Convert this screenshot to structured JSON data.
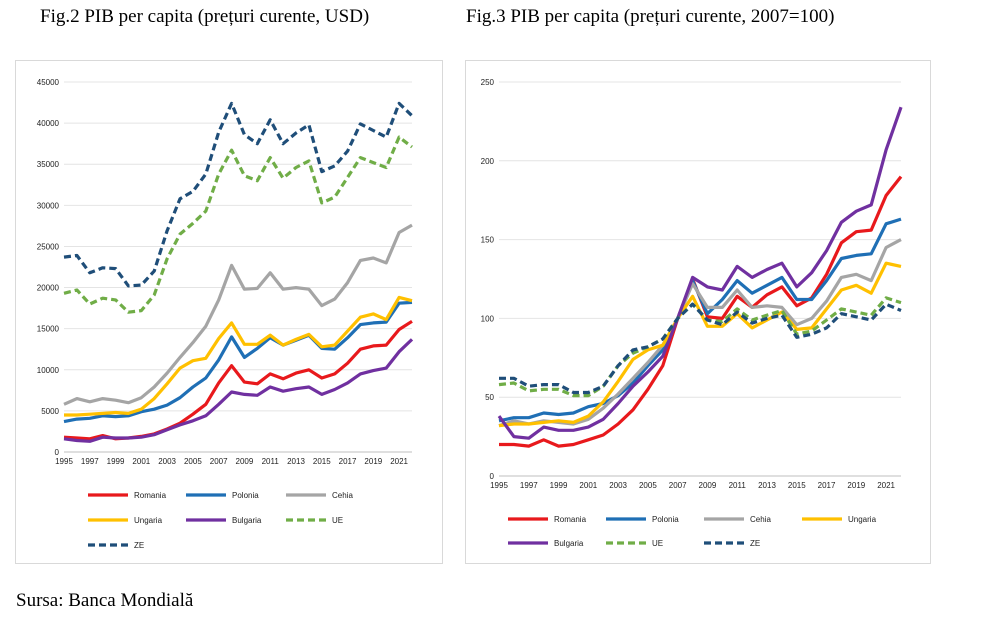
{
  "titles": {
    "fig2": "Fig.2 PIB per capita (prețuri curente, USD)",
    "fig3": "Fig.3 PIB per capita (prețuri curente, 2007=100)"
  },
  "source": "Sursa: Banca Mondială",
  "chart_data": [
    {
      "type": "line",
      "title": "Fig.2 PIB per capita (prețuri curente, USD)",
      "xlabel": "",
      "ylabel": "",
      "x": [
        1995,
        1996,
        1997,
        1998,
        1999,
        2000,
        2001,
        2002,
        2003,
        2004,
        2005,
        2006,
        2007,
        2008,
        2009,
        2010,
        2011,
        2012,
        2013,
        2014,
        2015,
        2016,
        2017,
        2018,
        2019,
        2020,
        2021,
        2022
      ],
      "x_tick_labels": [
        "1995",
        "1997",
        "1999",
        "2001",
        "2003",
        "2005",
        "2007",
        "2009",
        "2011",
        "2013",
        "2015",
        "2017",
        "2019",
        "2021"
      ],
      "ylim": [
        0,
        45000
      ],
      "y_ticks": [
        0,
        5000,
        10000,
        15000,
        20000,
        25000,
        30000,
        35000,
        40000,
        45000
      ],
      "grid": true,
      "legend_position": "bottom",
      "series": [
        {
          "name": "Romania",
          "color": "#e8191c",
          "dash": false,
          "values": [
            1800,
            1700,
            1600,
            2000,
            1600,
            1700,
            1900,
            2200,
            2800,
            3500,
            4600,
            5800,
            8400,
            10500,
            8500,
            8300,
            9500,
            8900,
            9600,
            10000,
            9000,
            9500,
            10800,
            12500,
            12900,
            13000,
            14900,
            15900
          ]
        },
        {
          "name": "Polonia",
          "color": "#1f6fb5",
          "dash": false,
          "values": [
            3700,
            4000,
            4100,
            4400,
            4300,
            4400,
            4900,
            5200,
            5700,
            6600,
            7900,
            9000,
            11200,
            14000,
            11500,
            12600,
            13900,
            13000,
            13600,
            14200,
            12600,
            12500,
            13900,
            15500,
            15700,
            15800,
            18100,
            18200
          ]
        },
        {
          "name": "Cehia",
          "color": "#a5a5a5",
          "dash": false,
          "values": [
            5800,
            6500,
            6100,
            6500,
            6300,
            6000,
            6600,
            7900,
            9600,
            11500,
            13300,
            15300,
            18500,
            22700,
            19800,
            19900,
            21800,
            19800,
            20000,
            19800,
            17800,
            18600,
            20600,
            23300,
            23600,
            23000,
            26700,
            27600
          ]
        },
        {
          "name": "Ungaria",
          "color": "#ffc000",
          "dash": false,
          "values": [
            4500,
            4500,
            4600,
            4700,
            4800,
            4700,
            5200,
            6500,
            8300,
            10200,
            11100,
            11400,
            13800,
            15700,
            13100,
            13100,
            14200,
            13000,
            13700,
            14300,
            12800,
            13000,
            14700,
            16400,
            16800,
            16100,
            18800,
            18400
          ]
        },
        {
          "name": "Bulgaria",
          "color": "#7030a0",
          "dash": false,
          "values": [
            1600,
            1400,
            1300,
            1800,
            1700,
            1700,
            1800,
            2100,
            2700,
            3300,
            3800,
            4400,
            5800,
            7300,
            7000,
            6900,
            7900,
            7400,
            7700,
            7900,
            7000,
            7600,
            8400,
            9500,
            9900,
            10200,
            12200,
            13700
          ]
        },
        {
          "name": "UE",
          "color": "#70ad47",
          "dash": true,
          "values": [
            19300,
            19700,
            18000,
            18700,
            18500,
            17000,
            17200,
            19100,
            23500,
            26500,
            27800,
            29300,
            33800,
            36700,
            33600,
            33000,
            35800,
            33300,
            34600,
            35400,
            30300,
            31000,
            33400,
            35800,
            35200,
            34600,
            38300,
            37100
          ]
        },
        {
          "name": "ZE",
          "color": "#1f4e79",
          "dash": true,
          "values": [
            23700,
            23900,
            21800,
            22400,
            22300,
            20200,
            20300,
            22000,
            26900,
            30800,
            31700,
            33800,
            38900,
            42400,
            38600,
            37500,
            40400,
            37500,
            38800,
            39800,
            34100,
            34800,
            36600,
            39900,
            39100,
            38300,
            42400,
            40900
          ]
        }
      ]
    },
    {
      "type": "line",
      "title": "Fig.3 PIB per capita (prețuri curente, 2007=100)",
      "xlabel": "",
      "ylabel": "",
      "x": [
        1995,
        1996,
        1997,
        1998,
        1999,
        2000,
        2001,
        2002,
        2003,
        2004,
        2005,
        2006,
        2007,
        2008,
        2009,
        2010,
        2011,
        2012,
        2013,
        2014,
        2015,
        2016,
        2017,
        2018,
        2019,
        2020,
        2021,
        2022
      ],
      "x_tick_labels": [
        "1995",
        "1997",
        "1999",
        "2001",
        "2003",
        "2005",
        "2007",
        "2009",
        "2011",
        "2013",
        "2015",
        "2017",
        "2019",
        "2021"
      ],
      "ylim": [
        0,
        250
      ],
      "y_ticks": [
        0,
        50,
        100,
        150,
        200,
        250
      ],
      "grid": true,
      "legend_position": "bottom",
      "series": [
        {
          "name": "Romania",
          "color": "#e8191c",
          "dash": false,
          "values": [
            20,
            20,
            19,
            23,
            19,
            20,
            23,
            26,
            33,
            42,
            55,
            70,
            100,
            125,
            101,
            100,
            114,
            107,
            115,
            120,
            108,
            113,
            128,
            148,
            155,
            156,
            178,
            190
          ]
        },
        {
          "name": "Polonia",
          "color": "#1f6fb5",
          "dash": false,
          "values": [
            35,
            37,
            37,
            40,
            39,
            40,
            44,
            46,
            51,
            59,
            70,
            80,
            100,
            124,
            103,
            112,
            124,
            116,
            121,
            126,
            112,
            112,
            124,
            138,
            140,
            141,
            160,
            163
          ]
        },
        {
          "name": "Cehia",
          "color": "#a5a5a5",
          "dash": false,
          "values": [
            32,
            35,
            33,
            35,
            34,
            33,
            36,
            43,
            52,
            62,
            72,
            83,
            100,
            122,
            107,
            107,
            118,
            107,
            108,
            107,
            96,
            100,
            111,
            126,
            128,
            124,
            145,
            150
          ]
        },
        {
          "name": "Ungaria",
          "color": "#ffc000",
          "dash": false,
          "values": [
            32,
            33,
            33,
            34,
            35,
            34,
            38,
            47,
            60,
            74,
            80,
            83,
            100,
            114,
            95,
            95,
            103,
            94,
            99,
            104,
            93,
            94,
            106,
            118,
            121,
            116,
            135,
            133
          ]
        },
        {
          "name": "Bulgaria",
          "color": "#7030a0",
          "dash": false,
          "values": [
            38,
            25,
            24,
            31,
            29,
            29,
            31,
            36,
            46,
            57,
            66,
            76,
            100,
            126,
            120,
            118,
            133,
            126,
            131,
            135,
            120,
            129,
            143,
            161,
            168,
            172,
            207,
            234
          ]
        },
        {
          "name": "UE",
          "color": "#70ad47",
          "dash": true,
          "values": [
            58,
            59,
            54,
            55,
            55,
            51,
            51,
            57,
            70,
            78,
            82,
            87,
            100,
            109,
            99,
            98,
            106,
            99,
            102,
            105,
            90,
            92,
            99,
            106,
            104,
            102,
            113,
            110
          ]
        },
        {
          "name": "ZE",
          "color": "#1f4e79",
          "dash": true,
          "values": [
            62,
            62,
            57,
            58,
            58,
            53,
            53,
            57,
            70,
            80,
            82,
            87,
            100,
            109,
            99,
            96,
            104,
            97,
            100,
            102,
            88,
            90,
            94,
            103,
            101,
            99,
            109,
            105
          ]
        }
      ]
    }
  ]
}
